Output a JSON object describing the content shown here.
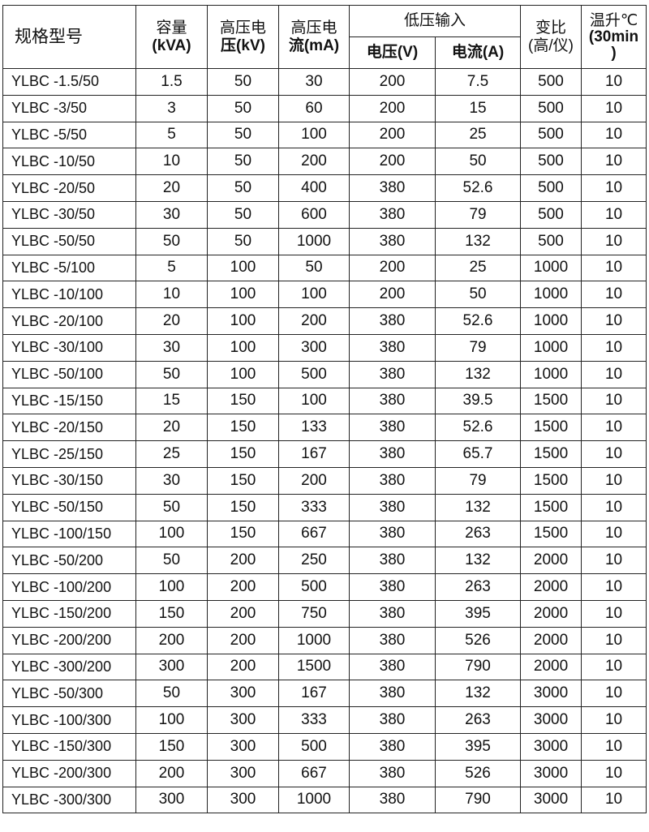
{
  "table": {
    "headers": {
      "model": "规格型号",
      "capacity": [
        "容量",
        "(kVA)"
      ],
      "hv_voltage": [
        "高压电",
        "压(kV)"
      ],
      "hv_current": [
        "高压电",
        "流(mA)"
      ],
      "lv_input": "低压输入",
      "lv_voltage": "电压(V)",
      "lv_current": "电流(A)",
      "ratio": [
        "变比",
        "(高/仪)"
      ],
      "temp_rise": [
        "温升℃",
        "(30min",
        ")"
      ]
    },
    "rows": [
      [
        "YLBC -1.5/50",
        "1.5",
        "50",
        "30",
        "200",
        "7.5",
        "500",
        "10"
      ],
      [
        "YLBC -3/50",
        "3",
        "50",
        "60",
        "200",
        "15",
        "500",
        "10"
      ],
      [
        "YLBC -5/50",
        "5",
        "50",
        "100",
        "200",
        "25",
        "500",
        "10"
      ],
      [
        "YLBC -10/50",
        "10",
        "50",
        "200",
        "200",
        "50",
        "500",
        "10"
      ],
      [
        "YLBC -20/50",
        "20",
        "50",
        "400",
        "380",
        "52.6",
        "500",
        "10"
      ],
      [
        "YLBC -30/50",
        "30",
        "50",
        "600",
        "380",
        "79",
        "500",
        "10"
      ],
      [
        "YLBC -50/50",
        "50",
        "50",
        "1000",
        "380",
        "132",
        "500",
        "10"
      ],
      [
        "YLBC -5/100",
        "5",
        "100",
        "50",
        "200",
        "25",
        "1000",
        "10"
      ],
      [
        "YLBC -10/100",
        "10",
        "100",
        "100",
        "200",
        "50",
        "1000",
        "10"
      ],
      [
        "YLBC -20/100",
        "20",
        "100",
        "200",
        "380",
        "52.6",
        "1000",
        "10"
      ],
      [
        "YLBC -30/100",
        "30",
        "100",
        "300",
        "380",
        "79",
        "1000",
        "10"
      ],
      [
        "YLBC -50/100",
        "50",
        "100",
        "500",
        "380",
        "132",
        "1000",
        "10"
      ],
      [
        "YLBC -15/150",
        "15",
        "150",
        "100",
        "380",
        "39.5",
        "1500",
        "10"
      ],
      [
        "YLBC -20/150",
        "20",
        "150",
        "133",
        "380",
        "52.6",
        "1500",
        "10"
      ],
      [
        "YLBC -25/150",
        "25",
        "150",
        "167",
        "380",
        "65.7",
        "1500",
        "10"
      ],
      [
        "YLBC -30/150",
        "30",
        "150",
        "200",
        "380",
        "79",
        "1500",
        "10"
      ],
      [
        "YLBC -50/150",
        "50",
        "150",
        "333",
        "380",
        "132",
        "1500",
        "10"
      ],
      [
        "YLBC -100/150",
        "100",
        "150",
        "667",
        "380",
        "263",
        "1500",
        "10"
      ],
      [
        "YLBC -50/200",
        "50",
        "200",
        "250",
        "380",
        "132",
        "2000",
        "10"
      ],
      [
        "YLBC -100/200",
        "100",
        "200",
        "500",
        "380",
        "263",
        "2000",
        "10"
      ],
      [
        "YLBC -150/200",
        "150",
        "200",
        "750",
        "380",
        "395",
        "2000",
        "10"
      ],
      [
        "YLBC -200/200",
        "200",
        "200",
        "1000",
        "380",
        "526",
        "2000",
        "10"
      ],
      [
        "YLBC -300/200",
        "300",
        "200",
        "1500",
        "380",
        "790",
        "2000",
        "10"
      ],
      [
        "YLBC -50/300",
        "50",
        "300",
        "167",
        "380",
        "132",
        "3000",
        "10"
      ],
      [
        "YLBC -100/300",
        "100",
        "300",
        "333",
        "380",
        "263",
        "3000",
        "10"
      ],
      [
        "YLBC -150/300",
        "150",
        "300",
        "500",
        "380",
        "395",
        "3000",
        "10"
      ],
      [
        "YLBC -200/300",
        "200",
        "300",
        "667",
        "380",
        "526",
        "3000",
        "10"
      ],
      [
        "YLBC -300/300",
        "300",
        "300",
        "1000",
        "380",
        "790",
        "3000",
        "10"
      ]
    ]
  }
}
